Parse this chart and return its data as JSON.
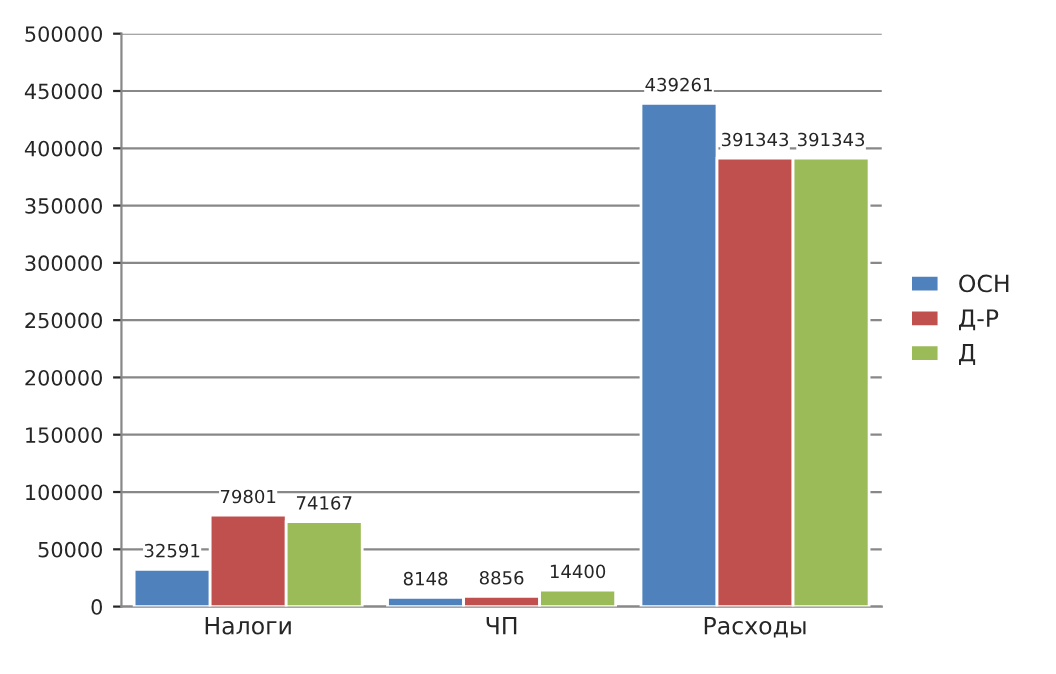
{
  "chart_data": {
    "type": "bar",
    "categories": [
      "Налоги",
      "ЧП",
      "Расходы"
    ],
    "series": [
      {
        "name": "ОСН",
        "color": "#4f81bd",
        "values": [
          32591,
          8148,
          439261
        ]
      },
      {
        "name": "Д-Р",
        "color": "#c0504d",
        "values": [
          79801,
          8856,
          391343
        ]
      },
      {
        "name": "Д",
        "color": "#9bbb59",
        "values": [
          74167,
          14400,
          391343
        ]
      }
    ],
    "ylim": [
      0,
      500000
    ],
    "yticks": [
      0,
      50000,
      100000,
      150000,
      200000,
      250000,
      300000,
      350000,
      400000,
      450000,
      500000
    ],
    "grid": "y",
    "legend": "right",
    "data_labels": true
  }
}
